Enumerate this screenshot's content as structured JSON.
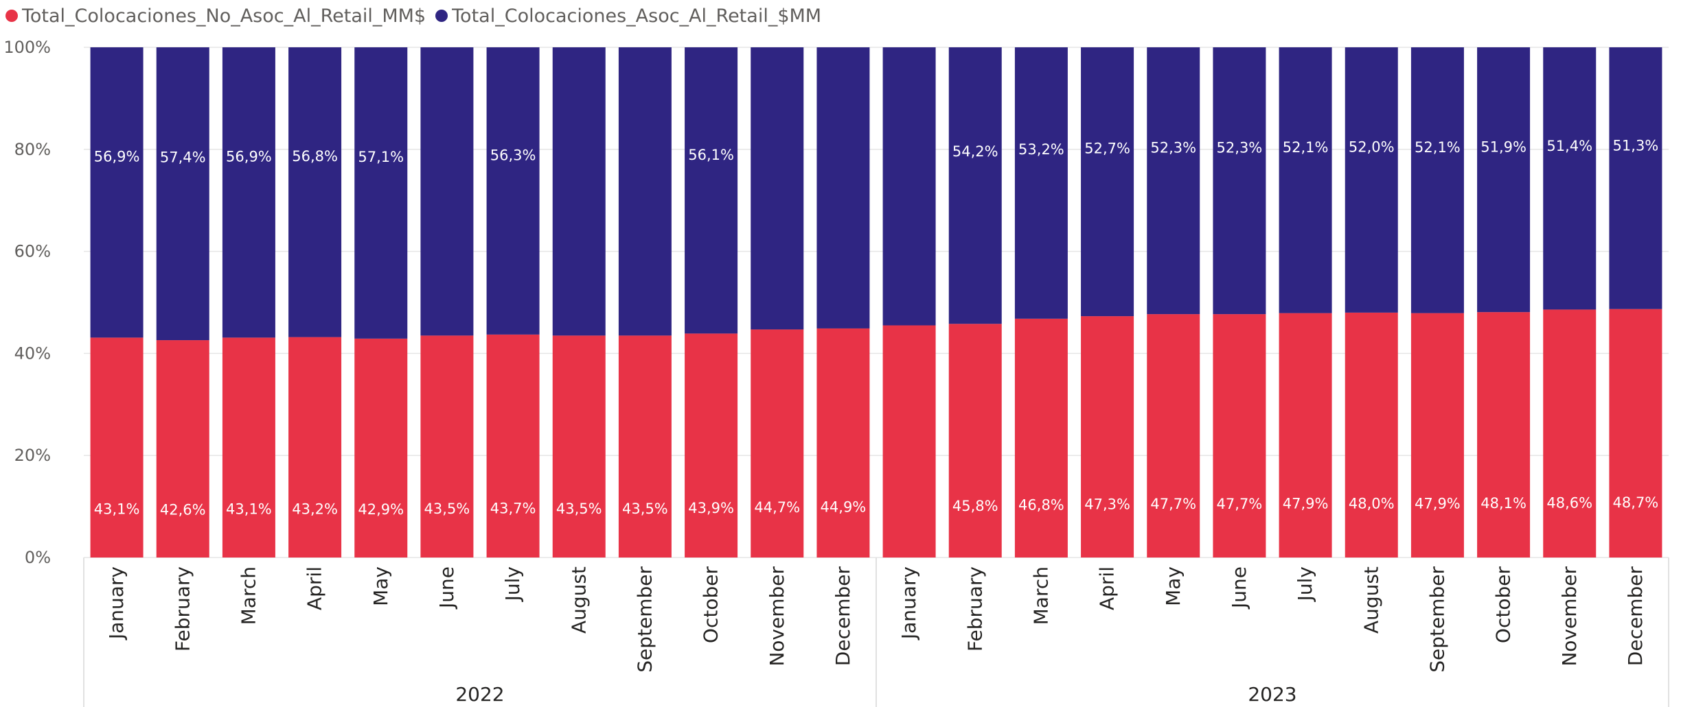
{
  "legend": [
    {
      "label": "Total_Colocaciones_No_Asoc_Al_Retail_MM$",
      "color": "#e83347"
    },
    {
      "label": "Total_Colocaciones_Asoc_Al_Retail_$MM",
      "color": "#2f2582"
    }
  ],
  "chart_data": {
    "type": "bar",
    "stacked": "100%",
    "grid": true,
    "ylim": [
      0,
      100
    ],
    "y_ticks": [
      "0%",
      "20%",
      "40%",
      "60%",
      "80%",
      "100%"
    ],
    "categories": [
      "January",
      "February",
      "March",
      "April",
      "May",
      "June",
      "July",
      "August",
      "September",
      "October",
      "November",
      "December",
      "January",
      "February",
      "March",
      "April",
      "May",
      "June",
      "July",
      "August",
      "September",
      "October",
      "November",
      "December"
    ],
    "years": [
      {
        "label": "2022",
        "count": 12
      },
      {
        "label": "2023",
        "count": 12
      }
    ],
    "series": [
      {
        "name": "Total_Colocaciones_No_Asoc_Al_Retail_MM$",
        "color": "#e83347",
        "values": [
          43.1,
          42.6,
          43.1,
          43.2,
          42.9,
          43.5,
          43.7,
          43.5,
          43.5,
          43.9,
          44.7,
          44.9,
          45.5,
          45.8,
          46.8,
          47.3,
          47.7,
          47.7,
          47.9,
          48.0,
          47.9,
          48.1,
          48.6,
          48.7
        ],
        "labels": [
          "43,1%",
          "42,6%",
          "43,1%",
          "43,2%",
          "42,9%",
          "43,5%",
          "43,7%",
          "43,5%",
          "43,5%",
          "43,9%",
          "44,7%",
          "44,9%",
          "",
          "45,8%",
          "46,8%",
          "47,3%",
          "47,7%",
          "47,7%",
          "47,9%",
          "48,0%",
          "47,9%",
          "48,1%",
          "48,6%",
          "48,7%"
        ]
      },
      {
        "name": "Total_Colocaciones_Asoc_Al_Retail_$MM",
        "color": "#2f2582",
        "values": [
          56.9,
          57.4,
          56.9,
          56.8,
          57.1,
          56.5,
          56.3,
          56.5,
          56.5,
          56.1,
          55.3,
          55.1,
          54.5,
          54.2,
          53.2,
          52.7,
          52.3,
          52.3,
          52.1,
          52.0,
          52.1,
          51.9,
          51.4,
          51.3
        ],
        "labels": [
          "56,9%",
          "57,4%",
          "56,9%",
          "56,8%",
          "57,1%",
          "",
          "56,3%",
          "",
          "",
          "56,1%",
          "",
          "",
          "",
          "54,2%",
          "53,2%",
          "52,7%",
          "52,3%",
          "52,3%",
          "52,1%",
          "52,0%",
          "52,1%",
          "51,9%",
          "51,4%",
          "51,3%"
        ]
      }
    ]
  }
}
